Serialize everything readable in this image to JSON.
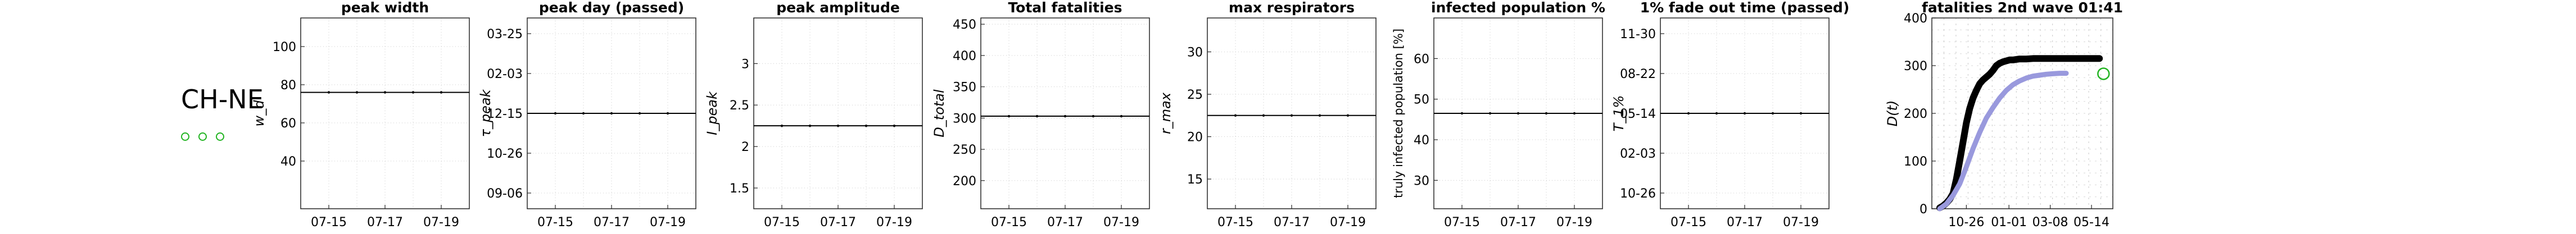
{
  "region": "CH-NE",
  "chart_data": [
    {
      "type": "line",
      "title": "peak width",
      "ylabel": "w_d",
      "x": [
        "07-15",
        "07-16",
        "07-17",
        "07-18",
        "07-19"
      ],
      "values": [
        76,
        76,
        76,
        76,
        76
      ],
      "ylim": [
        15,
        115
      ],
      "yticks": [
        "40",
        "60",
        "80",
        "100"
      ],
      "xticks": [
        "07-15",
        "07-17",
        "07-19"
      ],
      "grid": true
    },
    {
      "type": "line",
      "title": "peak day (passed)",
      "ylabel": "τ_peak",
      "x": [
        "07-15",
        "07-16",
        "07-17",
        "07-18",
        "07-19"
      ],
      "values": [
        "12-15",
        "12-15",
        "12-15",
        "12-15",
        "12-15"
      ],
      "yticks": [
        "09-06",
        "10-26",
        "12-15",
        "02-03",
        "03-25"
      ],
      "xticks": [
        "07-15",
        "07-17",
        "07-19"
      ],
      "grid": true
    },
    {
      "type": "line",
      "title": "peak amplitude",
      "ylabel": "I_peak",
      "x": [
        "07-15",
        "07-16",
        "07-17",
        "07-18",
        "07-19"
      ],
      "values": [
        2.25,
        2.25,
        2.25,
        2.25,
        2.25
      ],
      "ylim": [
        1.25,
        3.55
      ],
      "yticks": [
        "1.5",
        "2",
        "2.5",
        "3"
      ],
      "xticks": [
        "07-15",
        "07-17",
        "07-19"
      ],
      "grid": true
    },
    {
      "type": "line",
      "title": "Total fatalities",
      "ylabel": "D_total",
      "x": [
        "07-15",
        "07-16",
        "07-17",
        "07-18",
        "07-19"
      ],
      "values": [
        303,
        303,
        303,
        303,
        303
      ],
      "ylim": [
        155,
        460
      ],
      "yticks": [
        "200",
        "250",
        "300",
        "350",
        "400",
        "450"
      ],
      "xticks": [
        "07-15",
        "07-17",
        "07-19"
      ],
      "grid": true
    },
    {
      "type": "line",
      "title": "max respirators",
      "ylabel": "r_max",
      "x": [
        "07-15",
        "07-16",
        "07-17",
        "07-18",
        "07-19"
      ],
      "values": [
        22.5,
        22.5,
        22.5,
        22.5,
        22.5
      ],
      "ylim": [
        11.5,
        34
      ],
      "yticks": [
        "15",
        "20",
        "25",
        "30"
      ],
      "xticks": [
        "07-15",
        "07-17",
        "07-19"
      ],
      "grid": true
    },
    {
      "type": "line",
      "title": "infected population %",
      "ylabel": "truly infected population [%]",
      "x": [
        "07-15",
        "07-16",
        "07-17",
        "07-18",
        "07-19"
      ],
      "values": [
        46.5,
        46.5,
        46.5,
        46.5,
        46.5
      ],
      "ylim": [
        23,
        70
      ],
      "yticks": [
        "30",
        "40",
        "50",
        "60"
      ],
      "xticks": [
        "07-15",
        "07-17",
        "07-19"
      ],
      "grid": true
    },
    {
      "type": "line",
      "title": "1% fade out time (passed)",
      "ylabel": "T_1%",
      "x": [
        "07-15",
        "07-16",
        "07-17",
        "07-18",
        "07-19"
      ],
      "values": [
        "05-14",
        "05-14",
        "05-14",
        "05-14",
        "05-14"
      ],
      "yticks": [
        "10-26",
        "02-03",
        "05-14",
        "08-22",
        "11-30"
      ],
      "xticks": [
        "07-15",
        "07-17",
        "07-19"
      ],
      "grid": true
    },
    {
      "type": "line",
      "title": "fatalities 2nd wave 01:41",
      "ylabel": "D(t)",
      "ylim": [
        0,
        400
      ],
      "yticks": [
        "0",
        "100",
        "200",
        "300",
        "400"
      ],
      "xticks": [
        "10-26",
        "01-01",
        "03-08",
        "05-14"
      ],
      "grid": true,
      "series": [
        {
          "name": "",
          "color": "#000000",
          "x": [
            0,
            5,
            10,
            15,
            20,
            25,
            30,
            35,
            40,
            45,
            50,
            55,
            60,
            65,
            70,
            75,
            80,
            85,
            90,
            95,
            100,
            105,
            110,
            115,
            120,
            130,
            140,
            150,
            160,
            170,
            180,
            190,
            200,
            210,
            220,
            230,
            240
          ],
          "values": [
            2,
            6,
            12,
            20,
            32,
            62,
            100,
            140,
            180,
            210,
            232,
            248,
            262,
            270,
            276,
            282,
            290,
            300,
            305,
            308,
            310,
            312,
            312,
            313,
            314,
            314,
            315,
            315,
            315,
            315,
            315,
            315,
            315,
            315,
            315,
            315,
            315
          ]
        },
        {
          "name": "",
          "color": "#9999dd",
          "x": [
            0,
            10,
            20,
            30,
            40,
            50,
            60,
            70,
            80,
            90,
            100,
            110,
            120,
            130,
            140,
            150,
            160,
            170,
            180,
            190
          ],
          "values": [
            0,
            10,
            28,
            52,
            88,
            126,
            160,
            190,
            212,
            232,
            248,
            260,
            268,
            274,
            278,
            280,
            282,
            283,
            284,
            284
          ]
        },
        {
          "name": "",
          "color": "#22b422",
          "marker": "circle-open",
          "x": [
            246
          ],
          "values": [
            283
          ]
        }
      ]
    }
  ]
}
